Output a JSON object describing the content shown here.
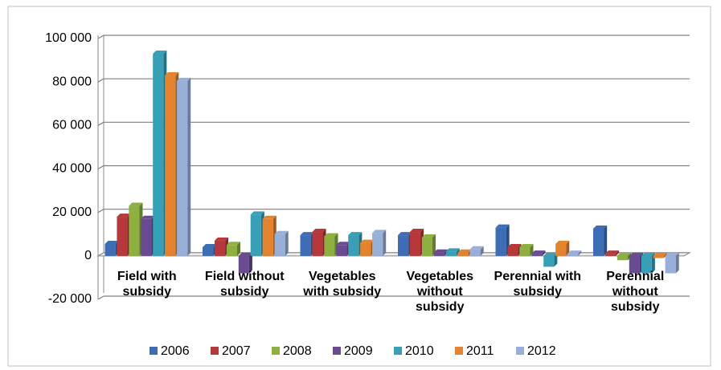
{
  "chart_data": {
    "type": "bar",
    "categories": [
      "Field with subsidy",
      "Field without subsidy",
      "Vegetables with subsidy",
      "Vegetables without subsidy",
      "Perennial with subsidy",
      "Perennial without subsidy"
    ],
    "series": [
      {
        "name": "2006",
        "color": "#3d6db5",
        "values": [
          5500,
          4000,
          9500,
          9500,
          13000,
          12500
        ]
      },
      {
        "name": "2007",
        "color": "#b7373a",
        "values": [
          18000,
          7000,
          11000,
          11000,
          4000,
          1000
        ]
      },
      {
        "name": "2008",
        "color": "#8db040",
        "values": [
          23000,
          5000,
          9000,
          8500,
          4000,
          -2000
        ]
      },
      {
        "name": "2009",
        "color": "#6a4a92",
        "values": [
          17000,
          -8000,
          5000,
          1500,
          1000,
          -8000
        ]
      },
      {
        "name": "2010",
        "color": "#37a0b6",
        "values": [
          93000,
          19000,
          9500,
          2000,
          -5000,
          -8000
        ]
      },
      {
        "name": "2011",
        "color": "#e5832c",
        "values": [
          83000,
          17000,
          6000,
          1500,
          5500,
          -1000
        ]
      },
      {
        "name": "2012",
        "color": "#98afd8",
        "values": [
          80500,
          10000,
          10500,
          3000,
          1000,
          -8000
        ]
      }
    ],
    "ylim": [
      -20000,
      100000
    ],
    "yticks": [
      {
        "value": -20000,
        "label": "-20 000"
      },
      0,
      {
        "value": 20000,
        "label": "20 000"
      },
      {
        "value": 40000,
        "label": "40 000"
      },
      {
        "value": 60000,
        "label": "60 000"
      },
      {
        "value": 80000,
        "label": "80 000"
      },
      {
        "value": 100000,
        "label": "100 000"
      }
    ],
    "grid": true,
    "legend": "bottom"
  }
}
